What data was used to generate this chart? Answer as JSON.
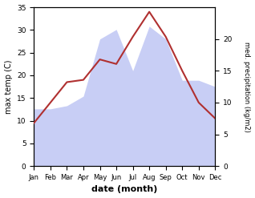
{
  "months": [
    "Jan",
    "Feb",
    "Mar",
    "Apr",
    "May",
    "Jun",
    "Jul",
    "Aug",
    "Sep",
    "Oct",
    "Nov",
    "Dec"
  ],
  "temp": [
    9.5,
    14.0,
    18.5,
    19.0,
    23.5,
    22.5,
    28.5,
    34.0,
    28.5,
    21.0,
    14.0,
    10.5
  ],
  "precip": [
    9.0,
    9.0,
    9.5,
    11.0,
    20.0,
    21.5,
    15.0,
    22.0,
    20.0,
    13.5,
    13.5,
    12.5
  ],
  "temp_color": "#b03030",
  "precip_fill_color": "#c8cef5",
  "ylabel_left": "max temp (C)",
  "ylabel_right": "med. precipitation (kg/m2)",
  "xlabel": "date (month)",
  "ylim_left": [
    0,
    35
  ],
  "ylim_right": [
    0,
    25
  ],
  "yticks_left": [
    0,
    5,
    10,
    15,
    20,
    25,
    30,
    35
  ],
  "yticks_right": [
    0,
    5,
    10,
    15,
    20
  ],
  "background_color": "#ffffff"
}
